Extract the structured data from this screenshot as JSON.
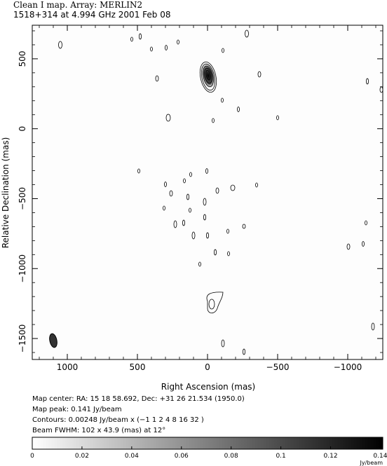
{
  "header": {
    "title_line": "Clean I map.   Array:   MERLIN2",
    "source_line": "1518+314 at 4.994 GHz 2001 Feb 08"
  },
  "axes": {
    "xlabel": "Right Ascension  (mas)",
    "ylabel": "Relative Declination  (mas)",
    "x_ticks": [
      "1000",
      "500",
      "0",
      "−500",
      "−1000"
    ],
    "y_ticks": [
      "500",
      "0",
      "−500",
      "−1000",
      "−1500"
    ],
    "x_range": [
      1250,
      -1250
    ],
    "y_range": [
      -1650,
      740
    ]
  },
  "info": {
    "map_center": "Map center:  RA: 15 18 58.692,  Dec: +31 26 21.534 (1950.0)",
    "map_peak": "Map peak: 0.141 Jy/beam",
    "contours": "Contours: 0.00248 Jy/beam x (−1 1 2 4 8 16 32 )",
    "beam": "Beam FWHM: 102 x 43.9 (mas) at 12°"
  },
  "colorbar": {
    "ticks": [
      "0",
      "0.02",
      "0.04",
      "0.06",
      "0.08",
      "0.1",
      "0.12",
      "0.14"
    ],
    "unit": "Jy/beam",
    "range": [
      0,
      0.141
    ]
  }
}
